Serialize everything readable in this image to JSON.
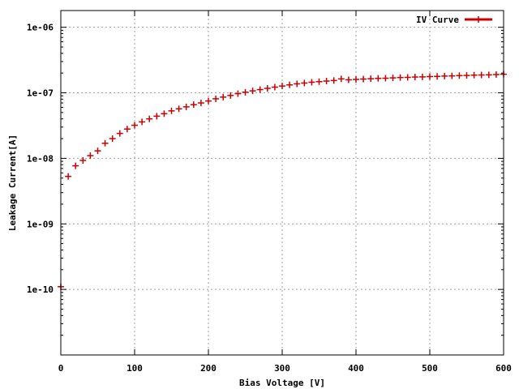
{
  "chart_data": {
    "type": "scatter",
    "xlabel": "Bias Voltage [V]",
    "ylabel": "Leakage Current[A]",
    "xlim": [
      0,
      600
    ],
    "ylim": [
      1e-11,
      1.8e-06
    ],
    "y_scale": "log",
    "grid": true,
    "legend_position": "top-right",
    "x_ticks": [
      0,
      100,
      200,
      300,
      400,
      500,
      600
    ],
    "x_tick_labels": [
      "0",
      "100",
      "200",
      "300",
      "400",
      "500",
      "600"
    ],
    "y_ticks": [
      1e-10,
      1e-09,
      1e-08,
      1e-07,
      1e-06
    ],
    "y_tick_labels": [
      "1e-10",
      "1e-09",
      "1e-08",
      "1e-07",
      "1e-06"
    ],
    "series": [
      {
        "name": "IV Curve",
        "color": "#cc0000",
        "marker": "plus",
        "x": [
          0,
          10,
          20,
          30,
          40,
          50,
          60,
          70,
          80,
          90,
          100,
          110,
          120,
          130,
          140,
          150,
          160,
          170,
          180,
          190,
          200,
          210,
          220,
          230,
          240,
          250,
          260,
          270,
          280,
          290,
          300,
          310,
          320,
          330,
          340,
          350,
          360,
          370,
          380,
          390,
          400,
          410,
          420,
          430,
          440,
          450,
          460,
          470,
          480,
          490,
          500,
          510,
          520,
          530,
          540,
          550,
          560,
          570,
          580,
          590,
          600
        ],
        "y": [
          1.1e-10,
          5.3e-09,
          7.7e-09,
          9.3e-09,
          1.1e-08,
          1.3e-08,
          1.7e-08,
          2e-08,
          2.4e-08,
          2.8e-08,
          3.2e-08,
          3.6e-08,
          4e-08,
          4.4e-08,
          4.8e-08,
          5.3e-08,
          5.7e-08,
          6.1e-08,
          6.6e-08,
          7e-08,
          7.5e-08,
          8.1e-08,
          8.6e-08,
          9.1e-08,
          9.7e-08,
          1.02e-07,
          1.07e-07,
          1.12e-07,
          1.17e-07,
          1.22e-07,
          1.27e-07,
          1.32e-07,
          1.37e-07,
          1.41e-07,
          1.45e-07,
          1.48e-07,
          1.51e-07,
          1.54e-07,
          1.63e-07,
          1.58e-07,
          1.6e-07,
          1.62e-07,
          1.64e-07,
          1.66e-07,
          1.67e-07,
          1.69e-07,
          1.71e-07,
          1.72e-07,
          1.74e-07,
          1.75e-07,
          1.77e-07,
          1.78e-07,
          1.8e-07,
          1.81e-07,
          1.83e-07,
          1.84e-07,
          1.86e-07,
          1.87e-07,
          1.88e-07,
          1.9e-07,
          1.92e-07
        ]
      }
    ]
  }
}
